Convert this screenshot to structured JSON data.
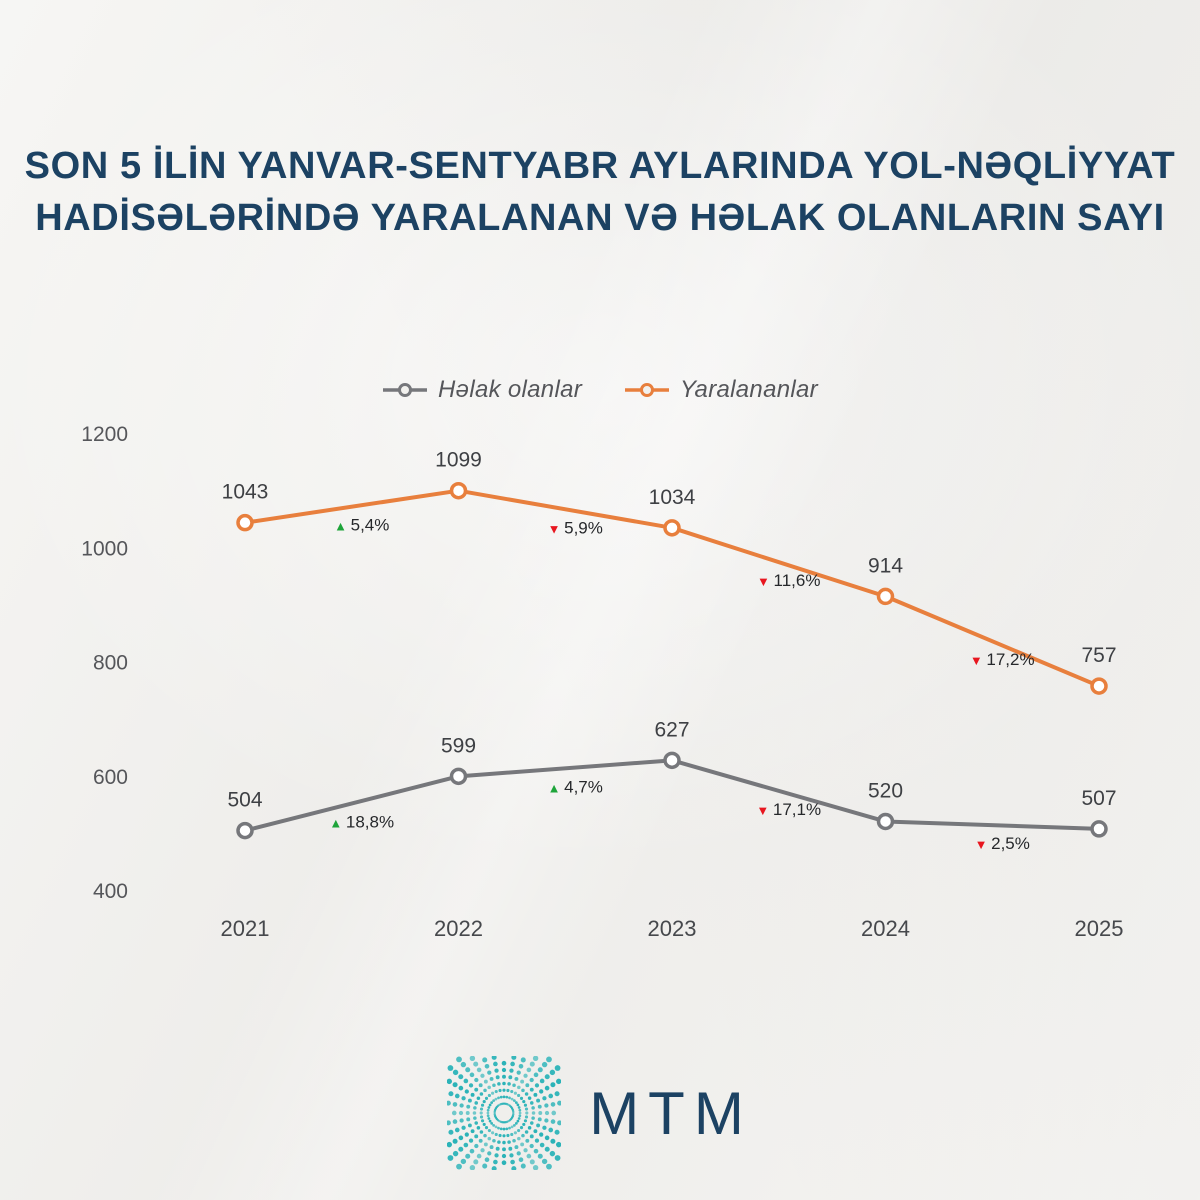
{
  "title": {
    "line1": "SON 5 İLİN YANVAR-SENTYABR AYLARINDA YOL-NƏQLİYYAT",
    "line2": "HADİSƏLƏRİNDƏ YARALANAN VƏ HƏLAK OLANLARIN SAYI"
  },
  "legend": [
    {
      "label": "Həlak olanlar",
      "color": "#76777b"
    },
    {
      "label": "Yaralananlar",
      "color": "#e87f3d"
    }
  ],
  "chart_data": {
    "type": "line",
    "categories": [
      "2021",
      "2022",
      "2023",
      "2024",
      "2025"
    ],
    "series": [
      {
        "name": "Həlak olanlar",
        "color": "#76777b",
        "values": [
          504,
          599,
          627,
          520,
          507
        ],
        "changes": [
          {
            "dir": "up",
            "label": "18,8%"
          },
          {
            "dir": "up",
            "label": "4,7%"
          },
          {
            "dir": "down",
            "label": "17,1%"
          },
          {
            "dir": "down",
            "label": "2,5%"
          }
        ]
      },
      {
        "name": "Yaralananlar",
        "color": "#e87f3d",
        "values": [
          1043,
          1099,
          1034,
          914,
          757
        ],
        "changes": [
          {
            "dir": "up",
            "label": "5,4%"
          },
          {
            "dir": "down",
            "label": "5,9%"
          },
          {
            "dir": "down",
            "label": "11,6%"
          },
          {
            "dir": "down",
            "label": "17,2%"
          }
        ]
      }
    ],
    "y_ticks": [
      1200,
      1000,
      800,
      600,
      400
    ],
    "ylim": [
      400,
      1200
    ],
    "grid": false,
    "legend_position": "top",
    "up_color": "#1ea43a",
    "down_color": "#e8161f"
  },
  "logo": {
    "text": "MTM",
    "icon_color": "#2bb3b8"
  },
  "colors": {
    "brand_navy": "#1c4263",
    "background": "#f2f1ee"
  }
}
